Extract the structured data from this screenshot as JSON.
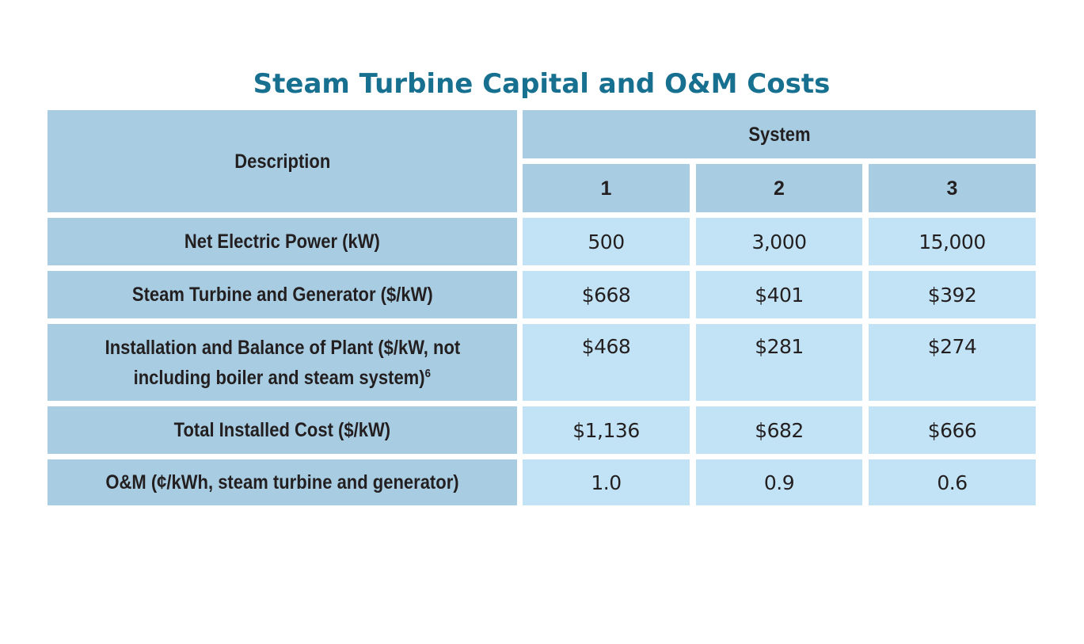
{
  "title": "Steam Turbine Capital and O&M Costs",
  "table": {
    "description_header": "Description",
    "system_header": "System",
    "system_columns": [
      "1",
      "2",
      "3"
    ],
    "rows": [
      {
        "label": "Net Electric Power (kW)",
        "values": [
          "500",
          "3,000",
          "15,000"
        ]
      },
      {
        "label": "Steam Turbine and Generator ($/kW)",
        "values": [
          "$668",
          "$401",
          "$392"
        ]
      },
      {
        "label_line1": "Installation and Balance of Plant ($/kW, not",
        "label_line2": "including boiler and steam system)",
        "footnote": "6",
        "values": [
          "$468",
          "$281",
          "$274"
        ]
      },
      {
        "label": "Total Installed Cost ($/kW)",
        "values": [
          "$1,136",
          "$682",
          "$666"
        ]
      },
      {
        "label": "O&M (¢/kWh, steam turbine and generator)",
        "values": [
          "1.0",
          "0.9",
          "0.6"
        ]
      }
    ]
  },
  "colors": {
    "title": "#17708f",
    "header_fill": "#a8cde2",
    "value_fill": "#c2e3f5",
    "text": "#231f20"
  }
}
